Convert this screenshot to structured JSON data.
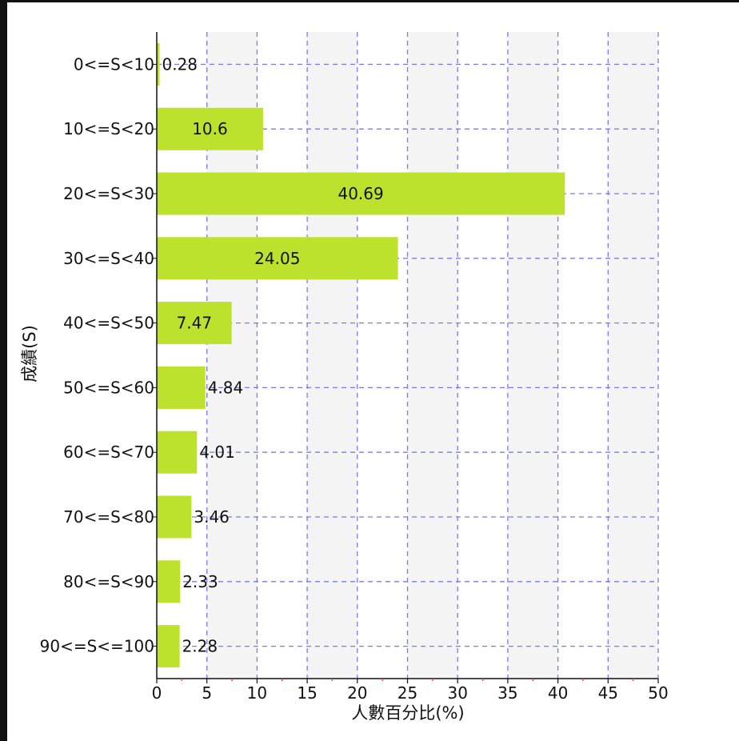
{
  "chart_data": {
    "type": "bar",
    "orientation": "horizontal",
    "categories": [
      "0<=S<10",
      "10<=S<20",
      "20<=S<30",
      "30<=S<40",
      "40<=S<50",
      "50<=S<60",
      "60<=S<70",
      "70<=S<80",
      "80<=S<90",
      "90<=S<=100"
    ],
    "values": [
      0.28,
      10.6,
      40.69,
      24.05,
      7.47,
      4.84,
      4.01,
      3.46,
      2.33,
      2.28
    ],
    "xlabel": "人數百分比(%)",
    "ylabel": "成績(S)",
    "xlim": [
      0,
      50
    ],
    "xticks": [
      0,
      5,
      10,
      15,
      20,
      25,
      30,
      35,
      40,
      45,
      50
    ],
    "grid": true,
    "bar_color": "#bde22e",
    "grid_color": "#7a7af0",
    "band_color": "#f4f4f4"
  }
}
